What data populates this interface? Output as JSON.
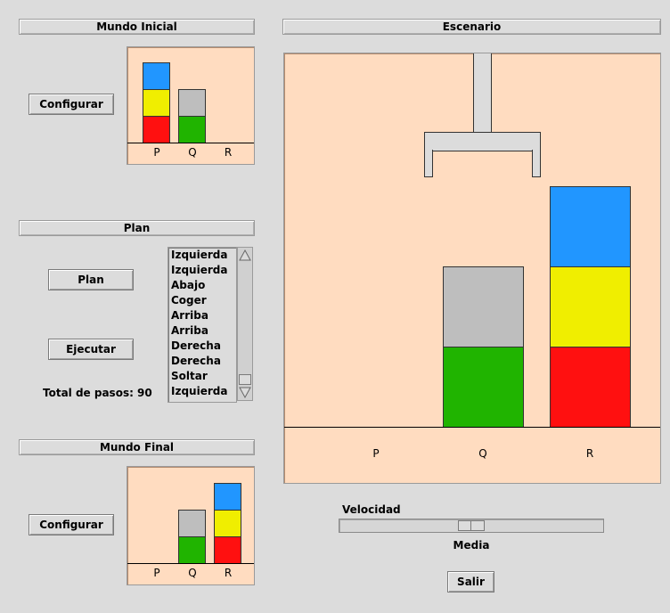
{
  "mundo_inicial": {
    "title": "Mundo Inicial",
    "configure_label": "Configurar",
    "pegs": [
      "P",
      "Q",
      "R"
    ]
  },
  "escenario": {
    "title": "Escenario",
    "pegs": [
      "P",
      "Q",
      "R"
    ]
  },
  "plan": {
    "title": "Plan",
    "plan_button": "Plan",
    "execute_button": "Ejecutar",
    "total_label": "Total de pasos: 90",
    "steps": [
      "Izquierda",
      "Izquierda",
      "Abajo",
      "Coger",
      "Arriba",
      "Arriba",
      "Derecha",
      "Derecha",
      "Soltar",
      "Izquierda"
    ]
  },
  "mundo_final": {
    "title": "Mundo Final",
    "configure_label": "Configurar",
    "pegs": [
      "P",
      "Q",
      "R"
    ]
  },
  "speed": {
    "label": "Velocidad",
    "value_label": "Media"
  },
  "exit_label": "Salir",
  "colors": {
    "blue": "#2196ff",
    "yellow": "#f0ee00",
    "red": "#ff1010",
    "gray": "#bebebe",
    "green": "#20b400",
    "world_bg": "#ffdcc0"
  }
}
